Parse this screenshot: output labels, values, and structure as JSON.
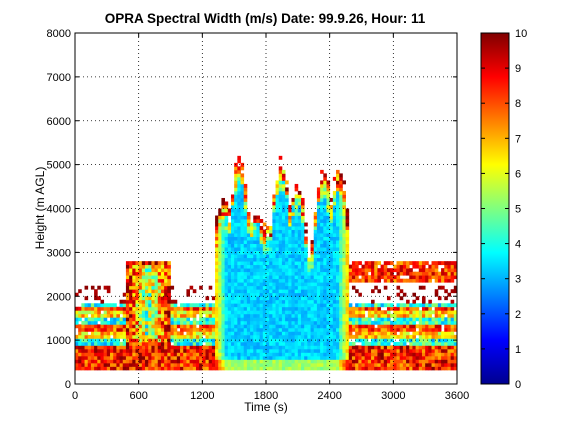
{
  "chart_data": {
    "type": "heatmap",
    "title": "OPRA Spectral Width (m/s)  Date: 99.9.26, Hour: 11",
    "xlabel": "Time (s)",
    "ylabel": "Height (m AGL)",
    "xlim": [
      0,
      3600
    ],
    "ylim": [
      0,
      8000
    ],
    "xticks": [
      "0",
      "600",
      "1200",
      "1800",
      "2400",
      "3000",
      "3600"
    ],
    "yticks": [
      "0",
      "1000",
      "2000",
      "3000",
      "4000",
      "5000",
      "6000",
      "7000",
      "8000"
    ],
    "grid": true,
    "colormap": "jet",
    "colorbar": {
      "range": [
        0,
        10
      ],
      "ticks": [
        "0",
        "1",
        "2",
        "3",
        "4",
        "5",
        "6",
        "7",
        "8",
        "9",
        "10"
      ]
    },
    "approximate_features": [
      {
        "time_s": [
          0,
          3600
        ],
        "height_m": [
          300,
          900
        ],
        "width_mps": "8-10",
        "note": "persistent high-width band near surface"
      },
      {
        "time_s": [
          0,
          3600
        ],
        "height_m": [
          900,
          1800
        ],
        "width_mps": "3-7",
        "note": "mixed layered echoes"
      },
      {
        "time_s": [
          500,
          900
        ],
        "height_m": [
          900,
          2800
        ],
        "width_mps": "4-10",
        "note": "early plume"
      },
      {
        "time_s": [
          1300,
          2600
        ],
        "height_m": [
          300,
          5800
        ],
        "width_mps": "3-4",
        "note": "deep convective column"
      },
      {
        "time_s": [
          2550,
          3600
        ],
        "height_m": [
          2300,
          2800
        ],
        "width_mps": "8-10",
        "note": "elevated layer"
      }
    ]
  }
}
